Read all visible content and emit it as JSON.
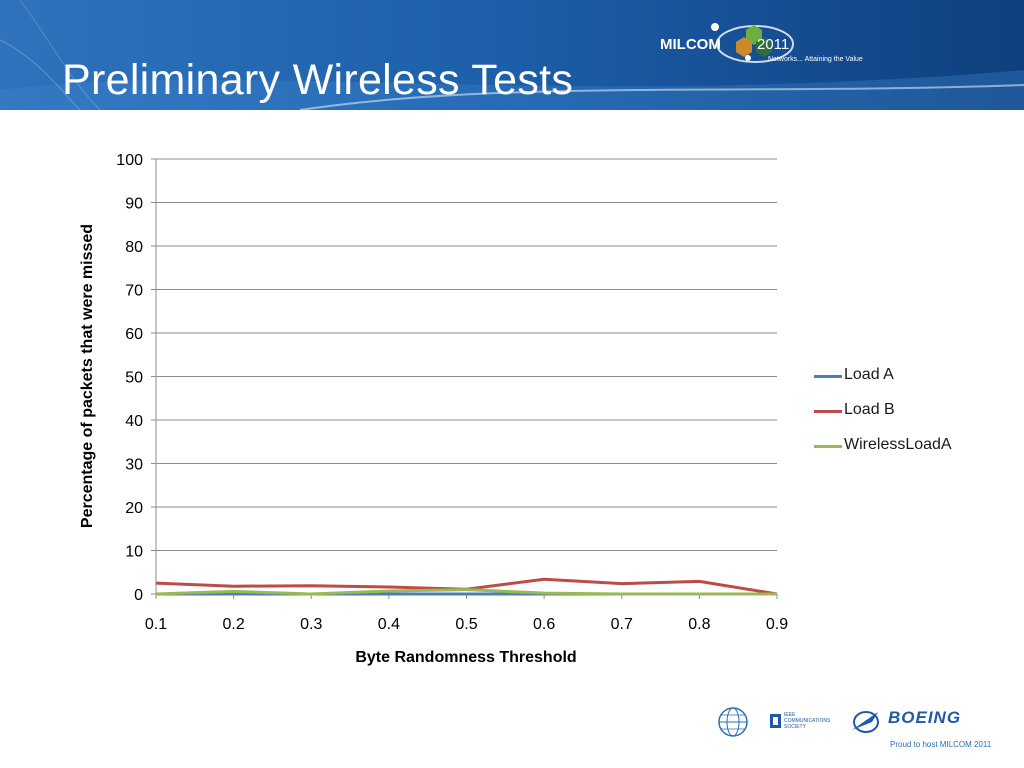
{
  "slide": {
    "title": "Preliminary Wireless Tests"
  },
  "branding": {
    "conference_name": "MILCOM",
    "conference_year": "2011",
    "tagline": "Networks... Attaining the Value",
    "footer_text": "Proud to host MILCOM 2011",
    "boeing_wordmark": "BOEING",
    "ieee_text": "IEEE COMMUNICATIONS SOCIETY",
    "header_color": "#1c5ea8",
    "header_color_dark": "#0f3f7e"
  },
  "chart_data": {
    "type": "line",
    "title": "",
    "xlabel": "Byte Randomness Threshold",
    "ylabel": "Percentage of packets that were missed",
    "x": [
      0.1,
      0.2,
      0.3,
      0.4,
      0.5,
      0.6,
      0.7,
      0.8,
      0.9
    ],
    "x_tick_labels": [
      "0.1",
      "0.2",
      "0.3",
      "0.4",
      "0.5",
      "0.6",
      "0.7",
      "0.8",
      "0.9"
    ],
    "ylim": [
      0,
      100
    ],
    "y_ticks": [
      0,
      10,
      20,
      30,
      40,
      50,
      60,
      70,
      80,
      90,
      100
    ],
    "grid": true,
    "legend_position": "right",
    "series": [
      {
        "name": "Load A",
        "color": "#4a7ebb",
        "values": [
          0,
          0,
          0,
          0,
          0,
          0,
          0,
          0,
          0
        ]
      },
      {
        "name": "Load B",
        "color": "#be4b48",
        "values": [
          2.5,
          1.8,
          1.9,
          1.6,
          1.1,
          3.4,
          2.4,
          2.9,
          0
        ]
      },
      {
        "name": "WirelessLoadA",
        "color": "#98b954",
        "values": [
          0,
          0.6,
          0,
          0.7,
          1.0,
          0.2,
          0,
          0,
          0
        ]
      }
    ]
  }
}
